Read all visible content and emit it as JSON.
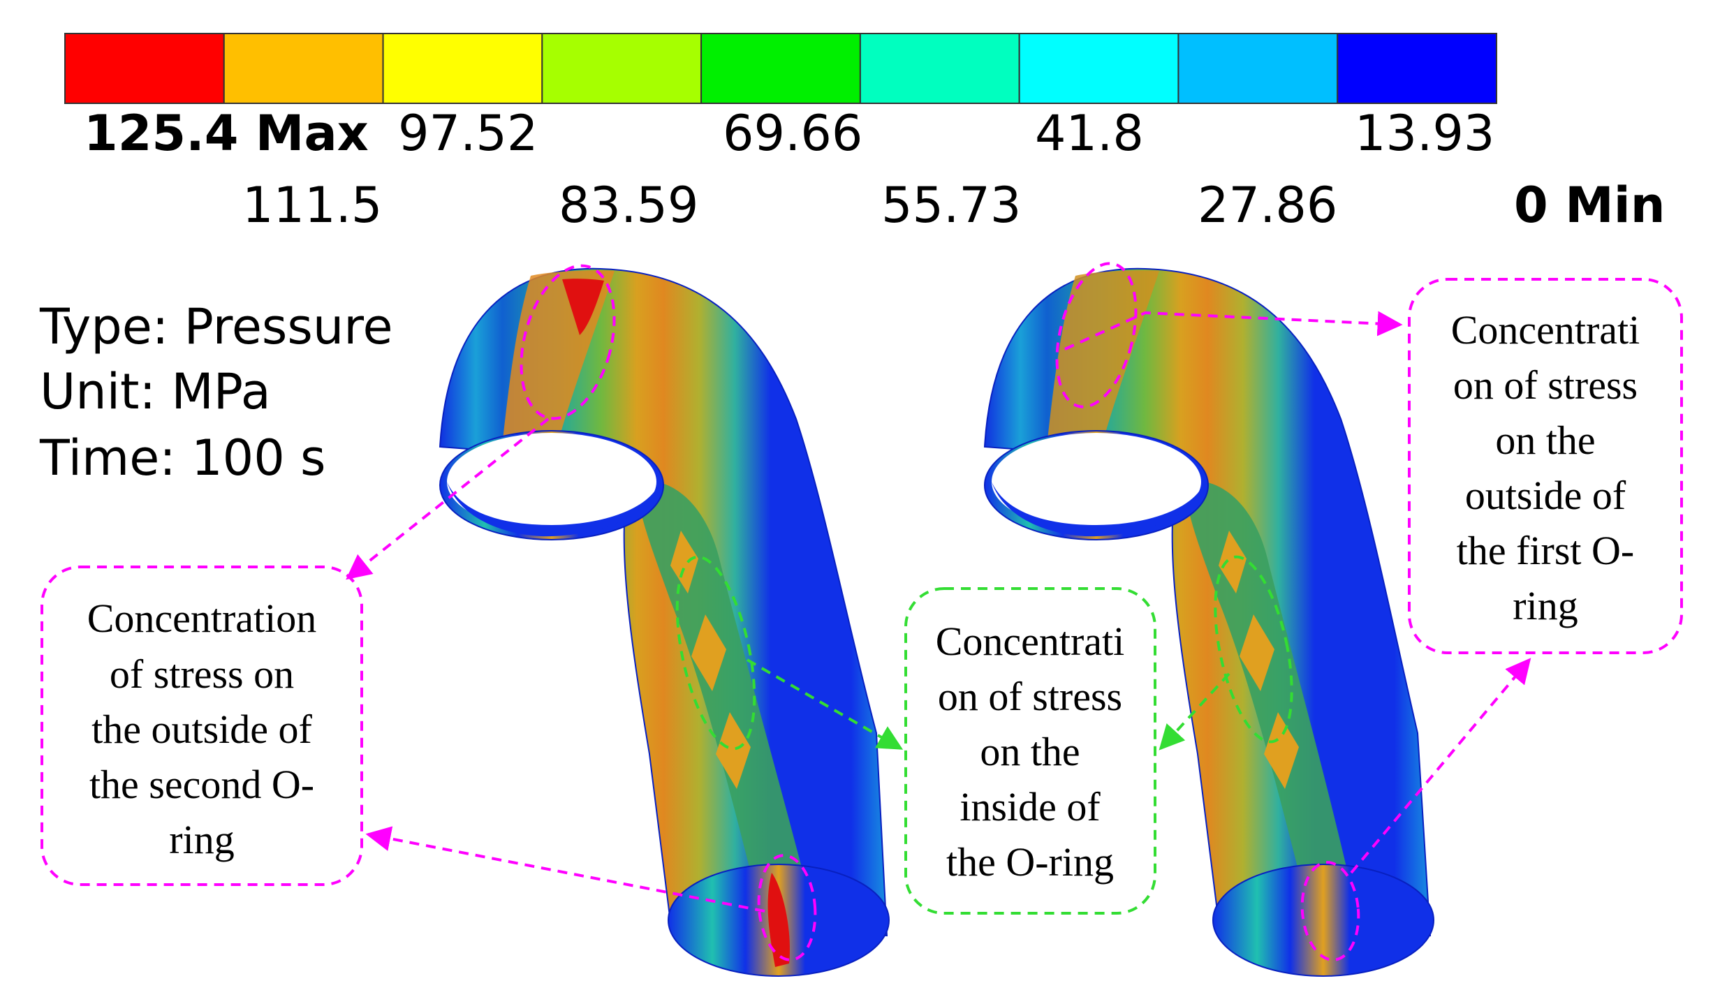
{
  "legend": {
    "colors": [
      "#ff0000",
      "#ffbf00",
      "#ffff00",
      "#a6ff00",
      "#00f000",
      "#00ffbf",
      "#00ffff",
      "#00bfff",
      "#0000ff"
    ],
    "top_labels": [
      "125.4 Max",
      "97.52",
      "69.66",
      "41.8",
      "13.93"
    ],
    "bottom_labels": [
      "111.5",
      "83.59",
      "55.73",
      "27.86",
      "0 Min"
    ]
  },
  "info": {
    "type": "Type: Pressure",
    "unit": "Unit: MPa",
    "time": "Time: 100 s"
  },
  "callouts": {
    "second_oring": [
      "Concentration",
      "of stress on",
      "the outside of",
      "the second O-",
      "ring"
    ],
    "inside_oring": [
      "Concentrati",
      "on of stress",
      "on the",
      "inside of",
      "the O-ring"
    ],
    "first_oring": [
      "Concentrati",
      "on of stress",
      "on the",
      "outside of",
      "the first O-",
      "ring"
    ]
  },
  "accent_colors": {
    "magenta": "#ff00ff",
    "green": "#33dd33"
  }
}
